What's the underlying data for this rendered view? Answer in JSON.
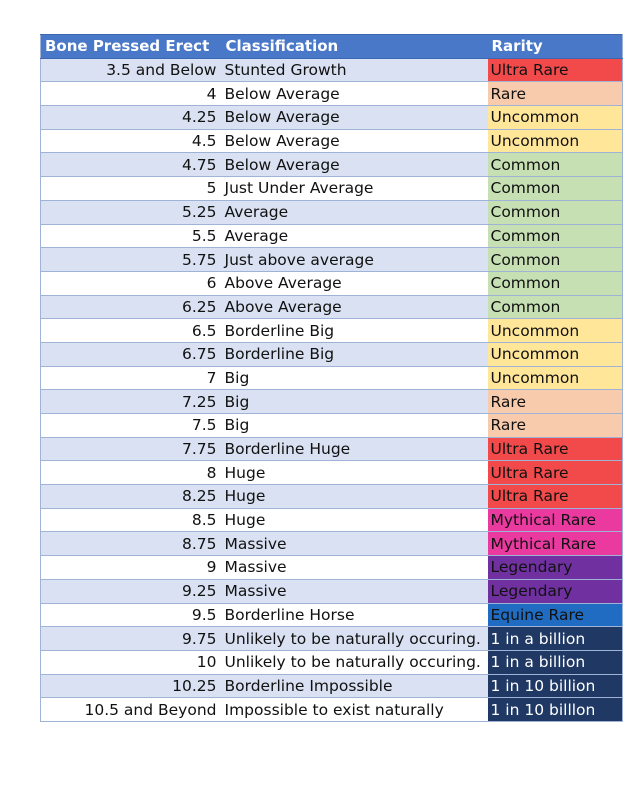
{
  "table": {
    "headers": [
      "Bone Pressed Erect",
      "Classification",
      "Rarity"
    ],
    "rarity_colors": {
      "Ultra Rare": {
        "bg": "#f24a4a",
        "fg": "#111111"
      },
      "Rare": {
        "bg": "#f8cbad",
        "fg": "#111111"
      },
      "Uncommon": {
        "bg": "#ffe699",
        "fg": "#111111"
      },
      "Common": {
        "bg": "#c6e0b4",
        "fg": "#111111"
      },
      "Mythical Rare": {
        "bg": "#ea3aa0",
        "fg": "#111111"
      },
      "Legendary": {
        "bg": "#7030a0",
        "fg": "#111111"
      },
      "Equine Rare": {
        "bg": "#1f6cc2",
        "fg": "#111111"
      },
      "1 in a billion": {
        "bg": "#1f3864",
        "fg": "#ffffff"
      },
      "1 in  10 billion": {
        "bg": "#1f3864",
        "fg": "#ffffff"
      },
      "1 in  10 billlon": {
        "bg": "#1f3864",
        "fg": "#ffffff"
      }
    },
    "rows": [
      {
        "length": "3.5 and Below",
        "classification": "Stunted Growth",
        "rarity": "Ultra Rare"
      },
      {
        "length": "4",
        "classification": "Below Average",
        "rarity": "Rare"
      },
      {
        "length": "4.25",
        "classification": "Below Average",
        "rarity": "Uncommon"
      },
      {
        "length": "4.5",
        "classification": "Below Average",
        "rarity": "Uncommon"
      },
      {
        "length": "4.75",
        "classification": "Below Average",
        "rarity": "Common"
      },
      {
        "length": "5",
        "classification": "Just Under Average",
        "rarity": "Common"
      },
      {
        "length": "5.25",
        "classification": "Average",
        "rarity": "Common"
      },
      {
        "length": "5.5",
        "classification": "Average",
        "rarity": "Common"
      },
      {
        "length": "5.75",
        "classification": "Just above average",
        "rarity": "Common"
      },
      {
        "length": "6",
        "classification": "Above Average",
        "rarity": "Common"
      },
      {
        "length": "6.25",
        "classification": "Above Average",
        "rarity": "Common"
      },
      {
        "length": "6.5",
        "classification": "Borderline Big",
        "rarity": "Uncommon"
      },
      {
        "length": "6.75",
        "classification": "Borderline Big",
        "rarity": "Uncommon"
      },
      {
        "length": "7",
        "classification": "Big",
        "rarity": "Uncommon"
      },
      {
        "length": "7.25",
        "classification": "Big",
        "rarity": "Rare"
      },
      {
        "length": "7.5",
        "classification": "Big",
        "rarity": "Rare"
      },
      {
        "length": "7.75",
        "classification": "Borderline Huge",
        "rarity": "Ultra Rare"
      },
      {
        "length": "8",
        "classification": "Huge",
        "rarity": "Ultra Rare"
      },
      {
        "length": "8.25",
        "classification": "Huge",
        "rarity": "Ultra Rare"
      },
      {
        "length": "8.5",
        "classification": "Huge",
        "rarity": "Mythical Rare"
      },
      {
        "length": "8.75",
        "classification": "Massive",
        "rarity": "Mythical Rare"
      },
      {
        "length": "9",
        "classification": "Massive",
        "rarity": "Legendary"
      },
      {
        "length": "9.25",
        "classification": "Massive",
        "rarity": "Legendary"
      },
      {
        "length": "9.5",
        "classification": "Borderline Horse",
        "rarity": "Equine Rare"
      },
      {
        "length": "9.75",
        "classification": "Unlikely to be naturally occuring.",
        "rarity": "1 in a billion"
      },
      {
        "length": "10",
        "classification": "Unlikely to be naturally occuring.",
        "rarity": "1 in a billion"
      },
      {
        "length": "10.25",
        "classification": "Borderline Impossible",
        "rarity": "1 in  10 billion"
      },
      {
        "length": "10.5 and Beyond",
        "classification": "Impossible to exist naturally",
        "rarity": "1 in  10 billlon"
      }
    ]
  }
}
